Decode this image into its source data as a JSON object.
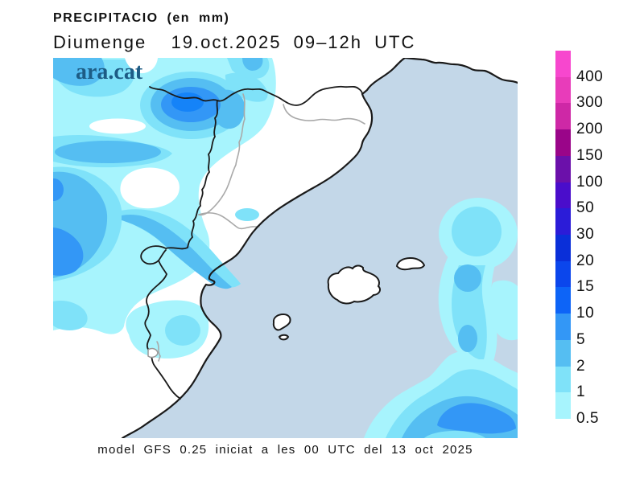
{
  "header": {
    "title": "PRECIPITACIO (en mm)",
    "subtitle": "Diumenge  19.oct.2025 09–12h UTC",
    "logo": "ara.cat"
  },
  "footer": {
    "model_info": "model GFS 0.25 iniciat a les 00 UTC del 13 oct 2025"
  },
  "legend": {
    "unit": "mm",
    "scale_mm": [
      0.5,
      1,
      2,
      5,
      10,
      15,
      20,
      30,
      50,
      100,
      150,
      200,
      300,
      400
    ],
    "levels": [
      {
        "label": "400",
        "color": "#f747ce"
      },
      {
        "label": "300",
        "color": "#e83cba"
      },
      {
        "label": "200",
        "color": "#ce28a6"
      },
      {
        "label": "150",
        "color": "#9a0589"
      },
      {
        "label": "100",
        "color": "#6b10aa"
      },
      {
        "label": "50",
        "color": "#4a0dcb"
      },
      {
        "label": "30",
        "color": "#2b1cd8"
      },
      {
        "label": "20",
        "color": "#0a2fd9"
      },
      {
        "label": "15",
        "color": "#0b46ec"
      },
      {
        "label": "10",
        "color": "#0d64f7"
      },
      {
        "label": "5",
        "color": "#3397f6"
      },
      {
        "label": "2",
        "color": "#55bef2"
      },
      {
        "label": "1",
        "color": "#7fe2f9"
      },
      {
        "label": "0.5",
        "color": "#a7f4fd"
      }
    ]
  },
  "map": {
    "region": "Catalonia, eastern Iberian coast and Balearic Islands",
    "sea_color": "#c3d7e8",
    "land_color": "#ffffff",
    "country_border_color": "#1a1a1a",
    "region_border_color": "#a9a9a9",
    "precip_fill_colors": {
      "0.5-1": "#a7f4fd",
      "1-2": "#7fe2f9",
      "2-5": "#55bef2",
      "5-10": "#3397f6",
      "10-15": "#1583f8"
    }
  }
}
